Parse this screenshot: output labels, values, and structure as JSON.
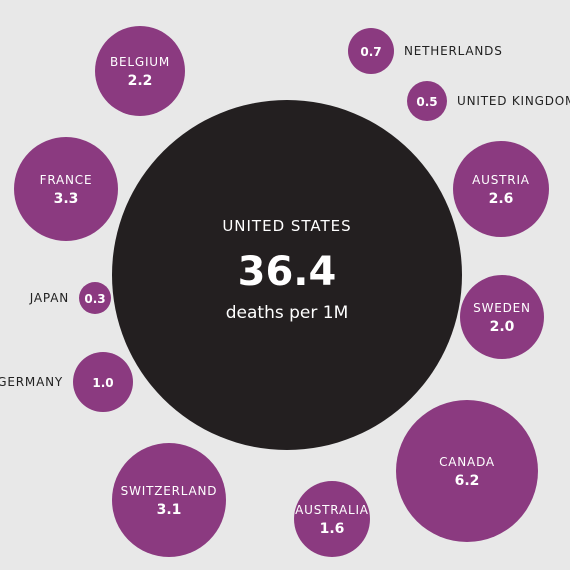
{
  "colors": {
    "background": "#e8e8e8",
    "focus_bubble": "#231f20",
    "other_bubbles": "#8b3a80"
  },
  "chart_data": {
    "type": "bubble",
    "unit": "deaths per 1M",
    "focus": {
      "label": "UNITED STATES",
      "value": 36.4,
      "value_text": "36.4"
    },
    "items": [
      {
        "label": "BELGIUM",
        "value": 2.2,
        "value_text": "2.2"
      },
      {
        "label": "NETHERLANDS",
        "value": 0.7,
        "value_text": "0.7"
      },
      {
        "label": "UNITED KINGDOM",
        "value": 0.5,
        "value_text": "0.5"
      },
      {
        "label": "FRANCE",
        "value": 3.3,
        "value_text": "3.3"
      },
      {
        "label": "AUSTRIA",
        "value": 2.6,
        "value_text": "2.6"
      },
      {
        "label": "JAPAN",
        "value": 0.3,
        "value_text": "0.3"
      },
      {
        "label": "SWEDEN",
        "value": 2.0,
        "value_text": "2.0"
      },
      {
        "label": "GERMANY",
        "value": 1.0,
        "value_text": "1.0"
      },
      {
        "label": "CANADA",
        "value": 6.2,
        "value_text": "6.2"
      },
      {
        "label": "SWITZERLAND",
        "value": 3.1,
        "value_text": "3.1"
      },
      {
        "label": "AUSTRALIA",
        "value": 1.6,
        "value_text": "1.6"
      }
    ]
  }
}
